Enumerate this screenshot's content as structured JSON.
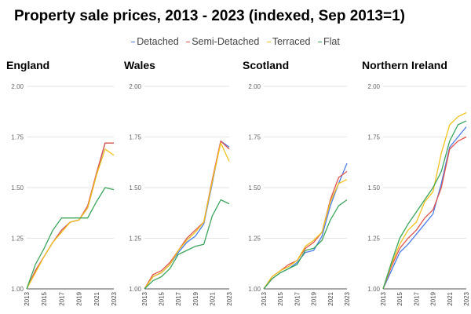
{
  "title": "Property sale prices, 2013 - 2023 (indexed, Sep 2013=1)",
  "colors": {
    "detached": "#4c7ee8",
    "semi_detached": "#e0534a",
    "terraced": "#f1c21b",
    "flat": "#3ba55c",
    "grid": "#e3e3e3",
    "axis": "#555555"
  },
  "legend": [
    {
      "label": "Detached",
      "color": "#4c7ee8"
    },
    {
      "label": "Semi-Detached",
      "color": "#e0534a"
    },
    {
      "label": "Terraced",
      "color": "#f1c21b"
    },
    {
      "label": "Flat",
      "color": "#3ba55c"
    }
  ],
  "chart_data": [
    {
      "type": "line",
      "title": "England",
      "ylim": [
        1.0,
        2.0
      ],
      "yticks": [
        "1.00",
        "1.25",
        "1.50",
        "1.75",
        "2.00"
      ],
      "xlim": [
        2013,
        2023
      ],
      "xticks": [
        "2013",
        "2015",
        "2017",
        "2019",
        "2021",
        "2023"
      ],
      "grid": true,
      "x": [
        2013,
        2014,
        2015,
        2016,
        2017,
        2018,
        2019,
        2020,
        2021,
        2022,
        2023
      ],
      "series": [
        {
          "name": "Detached",
          "color": "#4c7ee8",
          "values": [
            1.0,
            1.09,
            1.16,
            1.23,
            1.29,
            1.33,
            1.34,
            1.4,
            1.56,
            1.72,
            1.72
          ]
        },
        {
          "name": "Semi-Detached",
          "color": "#e0534a",
          "values": [
            1.0,
            1.09,
            1.16,
            1.23,
            1.29,
            1.33,
            1.34,
            1.41,
            1.57,
            1.72,
            1.72
          ]
        },
        {
          "name": "Terraced",
          "color": "#f1c21b",
          "values": [
            1.0,
            1.08,
            1.16,
            1.23,
            1.28,
            1.33,
            1.34,
            1.4,
            1.56,
            1.69,
            1.66
          ]
        },
        {
          "name": "Flat",
          "color": "#3ba55c",
          "values": [
            1.0,
            1.12,
            1.2,
            1.29,
            1.35,
            1.35,
            1.35,
            1.35,
            1.43,
            1.5,
            1.49
          ]
        }
      ]
    },
    {
      "type": "line",
      "title": "Wales",
      "ylim": [
        1.0,
        2.0
      ],
      "yticks": [
        "1.00",
        "1.25",
        "1.50",
        "1.75",
        "2.00"
      ],
      "xlim": [
        2013,
        2023
      ],
      "xticks": [
        "2013",
        "2015",
        "2017",
        "2019",
        "2021",
        "2023"
      ],
      "grid": true,
      "x": [
        2013,
        2014,
        2015,
        2016,
        2017,
        2018,
        2019,
        2020,
        2021,
        2022,
        2023
      ],
      "series": [
        {
          "name": "Detached",
          "color": "#4c7ee8",
          "values": [
            1.0,
            1.06,
            1.08,
            1.12,
            1.18,
            1.23,
            1.26,
            1.32,
            1.52,
            1.73,
            1.7
          ]
        },
        {
          "name": "Semi-Detached",
          "color": "#e0534a",
          "values": [
            1.0,
            1.07,
            1.09,
            1.13,
            1.19,
            1.25,
            1.29,
            1.33,
            1.54,
            1.73,
            1.69
          ]
        },
        {
          "name": "Terraced",
          "color": "#f1c21b",
          "values": [
            1.0,
            1.06,
            1.08,
            1.12,
            1.19,
            1.24,
            1.28,
            1.33,
            1.53,
            1.72,
            1.63
          ]
        },
        {
          "name": "Flat",
          "color": "#3ba55c",
          "values": [
            1.0,
            1.04,
            1.06,
            1.1,
            1.17,
            1.19,
            1.21,
            1.22,
            1.36,
            1.44,
            1.42
          ]
        }
      ]
    },
    {
      "type": "line",
      "title": "Scotland",
      "ylim": [
        1.0,
        2.0
      ],
      "yticks": [
        "1.00",
        "1.25",
        "1.50",
        "1.75",
        "2.00"
      ],
      "xlim": [
        2013,
        2023
      ],
      "xticks": [
        "2013",
        "2015",
        "2017",
        "2019",
        "2021",
        "2023"
      ],
      "grid": true,
      "x": [
        2013,
        2014,
        2015,
        2016,
        2017,
        2018,
        2019,
        2020,
        2021,
        2022,
        2023
      ],
      "series": [
        {
          "name": "Detached",
          "color": "#4c7ee8",
          "values": [
            1.0,
            1.05,
            1.08,
            1.1,
            1.13,
            1.18,
            1.19,
            1.26,
            1.41,
            1.52,
            1.62
          ]
        },
        {
          "name": "Semi-Detached",
          "color": "#e0534a",
          "values": [
            1.0,
            1.06,
            1.09,
            1.12,
            1.14,
            1.2,
            1.23,
            1.28,
            1.44,
            1.55,
            1.58
          ]
        },
        {
          "name": "Terraced",
          "color": "#f1c21b",
          "values": [
            1.0,
            1.06,
            1.09,
            1.11,
            1.14,
            1.21,
            1.24,
            1.28,
            1.43,
            1.52,
            1.54
          ]
        },
        {
          "name": "Flat",
          "color": "#3ba55c",
          "values": [
            1.0,
            1.05,
            1.08,
            1.1,
            1.12,
            1.19,
            1.2,
            1.24,
            1.34,
            1.41,
            1.44
          ]
        }
      ]
    },
    {
      "type": "line",
      "title": "Northern Ireland",
      "ylim": [
        1.0,
        2.0
      ],
      "yticks": [
        "1.00",
        "1.25",
        "1.50",
        "1.75",
        "2.00"
      ],
      "xlim": [
        2013,
        2023
      ],
      "xticks": [
        "2013",
        "2015",
        "2017",
        "2019",
        "2021",
        "2023"
      ],
      "grid": true,
      "x": [
        2013,
        2014,
        2015,
        2016,
        2017,
        2018,
        2019,
        2020,
        2021,
        2022,
        2023
      ],
      "series": [
        {
          "name": "Detached",
          "color": "#4c7ee8",
          "values": [
            1.0,
            1.09,
            1.18,
            1.22,
            1.27,
            1.32,
            1.37,
            1.52,
            1.7,
            1.75,
            1.8
          ]
        },
        {
          "name": "Semi-Detached",
          "color": "#e0534a",
          "values": [
            1.0,
            1.11,
            1.2,
            1.25,
            1.29,
            1.35,
            1.39,
            1.5,
            1.69,
            1.73,
            1.75
          ]
        },
        {
          "name": "Terraced",
          "color": "#f1c21b",
          "values": [
            1.0,
            1.12,
            1.22,
            1.29,
            1.33,
            1.43,
            1.48,
            1.67,
            1.81,
            1.85,
            1.87
          ]
        },
        {
          "name": "Flat",
          "color": "#3ba55c",
          "values": [
            1.0,
            1.13,
            1.25,
            1.32,
            1.38,
            1.44,
            1.5,
            1.58,
            1.73,
            1.81,
            1.83
          ]
        }
      ]
    }
  ]
}
